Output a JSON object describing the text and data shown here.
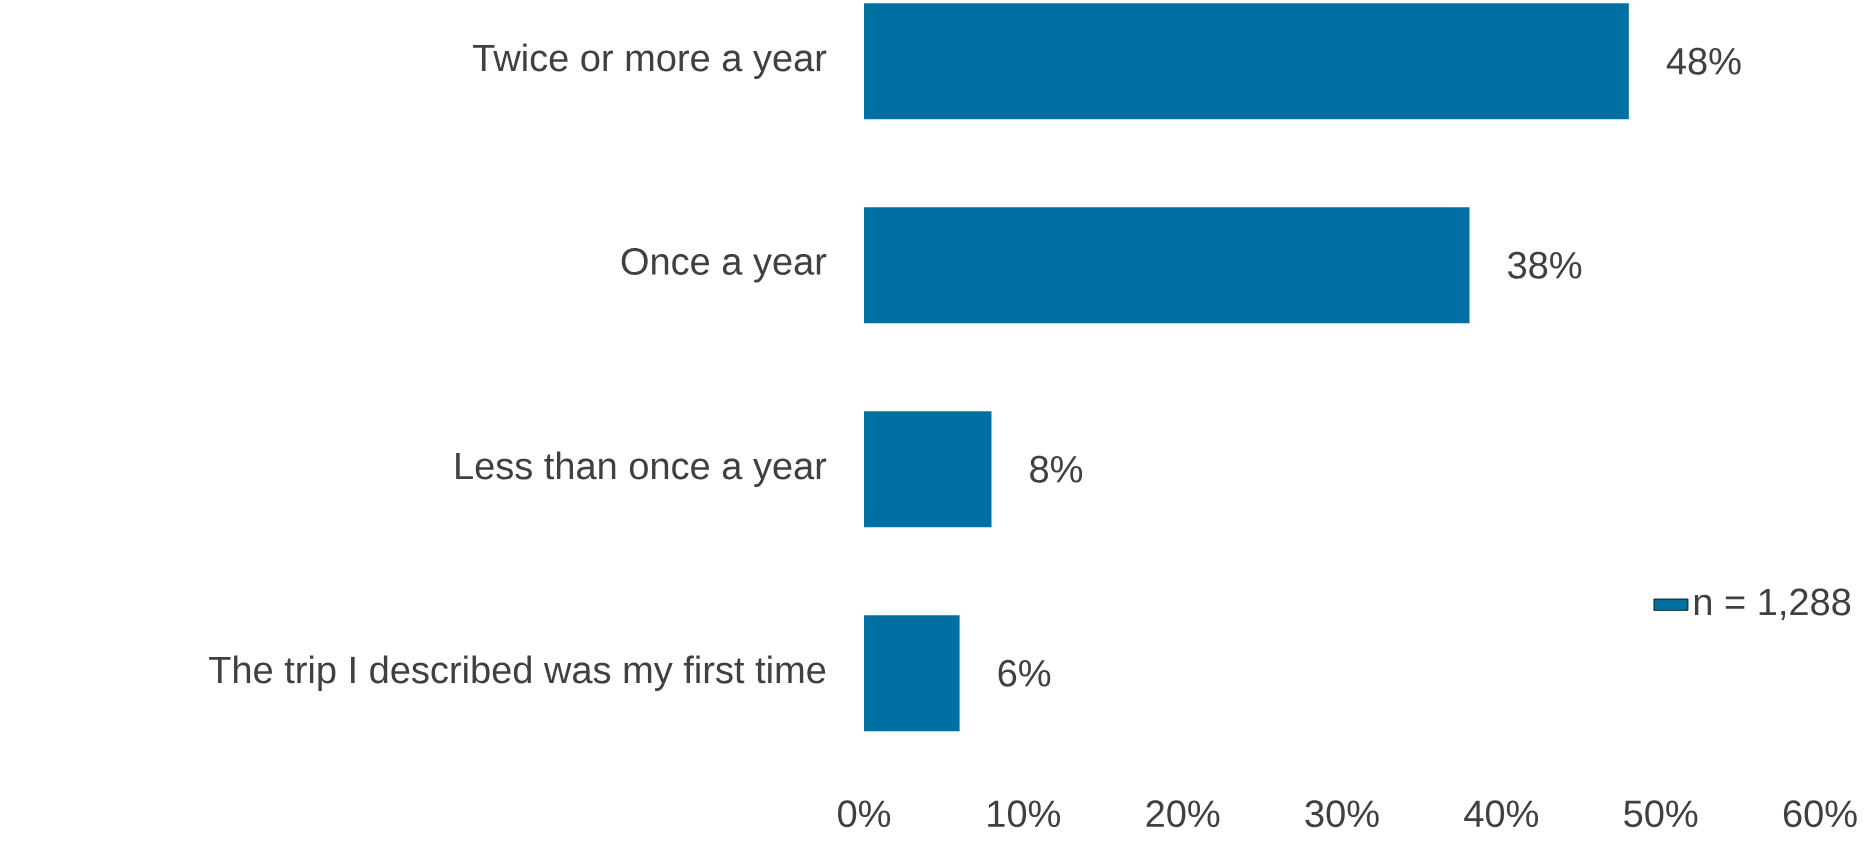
{
  "chart_data": {
    "type": "bar",
    "orientation": "horizontal",
    "categories": [
      "Twice or more a year",
      "Once a year",
      "Less than once a year",
      "The trip I described was my first time"
    ],
    "series": [
      {
        "name": "n = 1,288",
        "color": "#0070a3",
        "values": [
          48,
          38,
          8,
          6
        ],
        "value_labels": [
          "48%",
          "38%",
          "8%",
          "6%"
        ]
      }
    ],
    "xlim": [
      0,
      60
    ],
    "xticks": [
      {
        "value": 0,
        "label": "0%"
      },
      {
        "value": 10,
        "label": "10%"
      },
      {
        "value": 20,
        "label": "20%"
      },
      {
        "value": 30,
        "label": "30%"
      },
      {
        "value": 40,
        "label": "40%"
      },
      {
        "value": 50,
        "label": "50%"
      },
      {
        "value": 60,
        "label": "60%"
      }
    ],
    "legend": "right"
  }
}
